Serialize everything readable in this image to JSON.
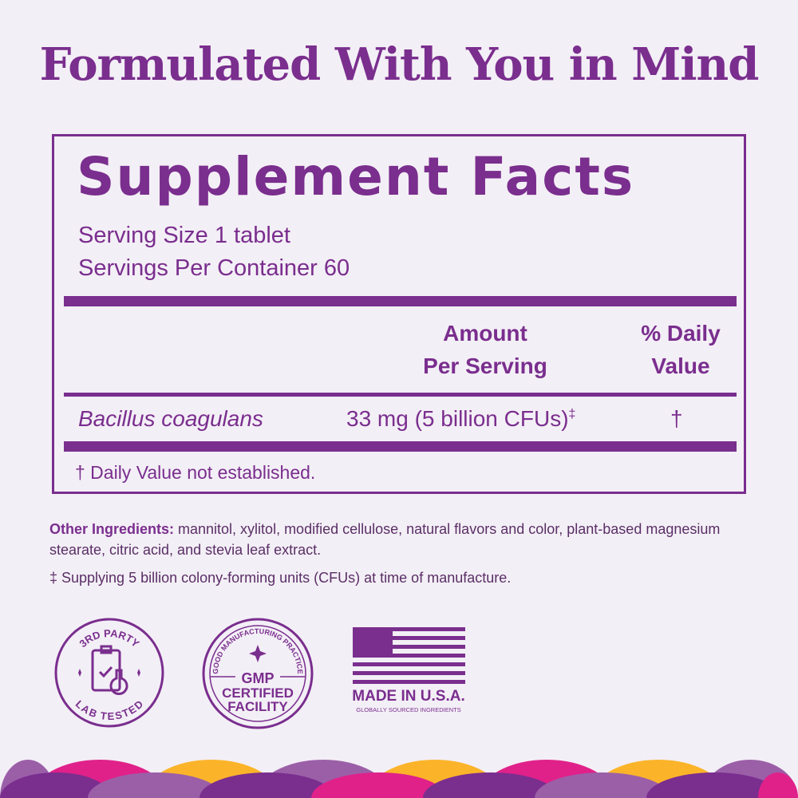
{
  "headline": "Formulated With You in Mind",
  "facts": {
    "title": "Supplement Facts",
    "serving_size": "Serving Size 1 tablet",
    "servings_per_container": "Servings Per Container 60",
    "col_amount_1": "Amount",
    "col_amount_2": "Per Serving",
    "col_dv_1": "% Daily",
    "col_dv_2": "Value",
    "rows": [
      {
        "name": "Bacillus coagulans",
        "amount": "33 mg (5 billion CFUs)",
        "amount_mark": "‡",
        "dv": "†"
      }
    ],
    "footnote": "† Daily Value not established."
  },
  "other_ingredients": {
    "label": "Other Ingredients:",
    "text": " mannitol, xylitol, modified cellulose, natural flavors and color, plant-based magnesium stearate, citric acid, and stevia leaf extract."
  },
  "supply_note": "‡ Supplying 5 billion colony-forming units (CFUs) at time of manufacture.",
  "badges": {
    "lab": {
      "top": "3RD PARTY",
      "bottom": "LAB TESTED",
      "icon": "clipboard-flask-icon"
    },
    "gmp": {
      "arc": "GOOD MANUFACTURING PRACTICE",
      "line1": "GMP",
      "line2": "CERTIFIED",
      "line3": "FACILITY"
    },
    "usa": {
      "main": "MADE IN U.S.A.",
      "sub": "GLOBALLY SOURCED INGREDIENTS",
      "icon": "us-flag-icon"
    }
  },
  "colors": {
    "purple": "#7a2e8e",
    "background": "#f3eff6",
    "pink": "#e0218a",
    "yellow": "#fbb42a",
    "lavender": "#9b5fa8"
  }
}
